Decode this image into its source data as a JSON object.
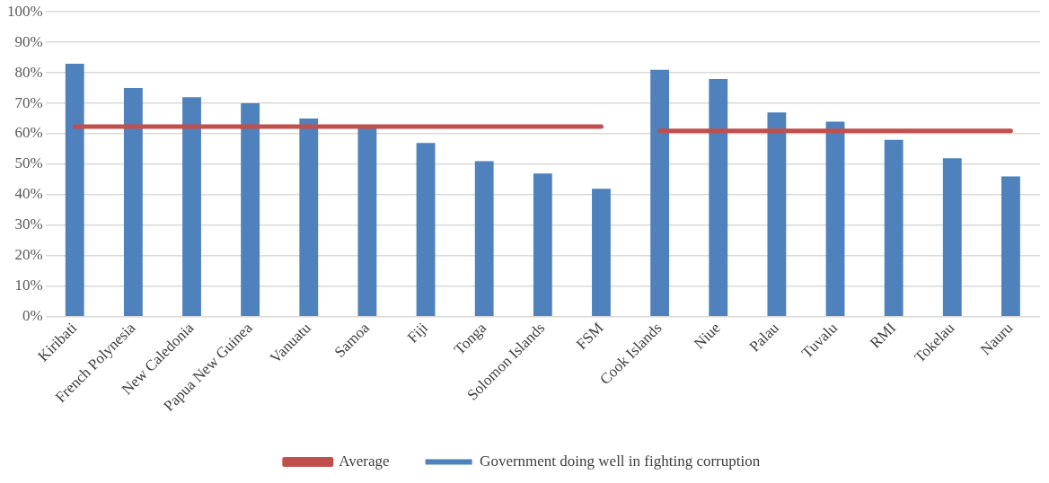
{
  "chart_data": {
    "type": "bar",
    "categories": [
      "Kiribati",
      "French Polynesia",
      "New Caledonia",
      "Papua New Guinea",
      "Vanuatu",
      "Samoa",
      "Fiji",
      "Tonga",
      "Solomon Islands",
      "FSM",
      "Cook Islands",
      "Niue",
      "Palau",
      "Tuvalu",
      "RMI",
      "Tokelau",
      "Nauru"
    ],
    "series": [
      {
        "name": "Government doing well in fighting corruption",
        "color": "#4f81bd",
        "values": [
          83,
          75,
          72,
          70,
          65,
          62,
          57,
          51,
          47,
          42,
          81,
          78,
          67,
          64,
          58,
          52,
          46
        ]
      },
      {
        "name": "Average",
        "type": "line",
        "color": "#c0504d",
        "values": [
          62.4,
          62.4,
          62.4,
          62.4,
          62.4,
          62.4,
          62.4,
          62.4,
          62.4,
          62.4,
          null,
          null,
          null,
          null,
          null,
          null,
          null
        ]
      },
      {
        "type": "line",
        "color": "#c0504d",
        "values": [
          null,
          null,
          null,
          null,
          null,
          null,
          null,
          null,
          null,
          null,
          61,
          61,
          61,
          61,
          61,
          61,
          61
        ]
      }
    ],
    "ylim": [
      0,
      100
    ],
    "yticks": [
      {
        "value": 0,
        "label": "0%"
      },
      {
        "value": 10,
        "label": "10%"
      },
      {
        "value": 20,
        "label": "20%"
      },
      {
        "value": 30,
        "label": "30%"
      },
      {
        "value": 40,
        "label": "40%"
      },
      {
        "value": 50,
        "label": "50%"
      },
      {
        "value": 60,
        "label": "60%"
      },
      {
        "value": 70,
        "label": "70%"
      },
      {
        "value": 80,
        "label": "80%"
      },
      {
        "value": 90,
        "label": "90%"
      },
      {
        "value": 100,
        "label": "100%"
      }
    ],
    "grid": "y",
    "legend": "bottom",
    "marker": "none"
  }
}
